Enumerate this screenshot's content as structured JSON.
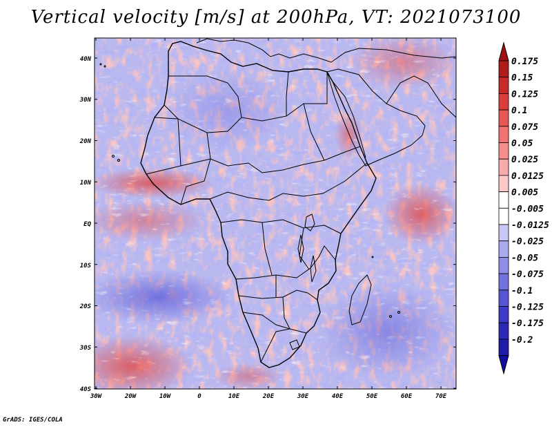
{
  "title": "Vertical velocity [m/s] at 200hPa, VT: 2021073100",
  "credit": "GrADS: IGES/COLA",
  "map": {
    "region": "Africa",
    "lon_range": [
      -30,
      75
    ],
    "lat_range": [
      -40,
      45
    ],
    "lon_ticks": [
      "30W",
      "20W",
      "10W",
      "0",
      "10E",
      "20E",
      "30E",
      "40E",
      "50E",
      "60E",
      "70E"
    ],
    "lat_ticks": [
      "40N",
      "30N",
      "20N",
      "10N",
      "EQ",
      "10S",
      "20S",
      "30S",
      "40S"
    ]
  },
  "colorbar": {
    "labels": [
      "0.175",
      "0.15",
      "0.125",
      "0.1",
      "0.075",
      "0.05",
      "0.025",
      "0.0125",
      "0.005",
      "-0.005",
      "-0.0125",
      "-0.025",
      "-0.05",
      "-0.075",
      "-0.1",
      "-0.125",
      "-0.175",
      "-0.2"
    ],
    "colors": [
      "#b01c1c",
      "#c82a2a",
      "#dc3c3c",
      "#e85656",
      "#f07272",
      "#f68e8e",
      "#f9aaaa",
      "#fcc8c8",
      "#ffffff",
      "#ffffff",
      "#c8c8f4",
      "#aaaaee",
      "#8e8ee6",
      "#7272dc",
      "#5656d2",
      "#3c3cc6",
      "#2a2ab6",
      "#1c1ca6"
    ],
    "top_arrow_color": "#a01010",
    "bottom_arrow_color": "#1010a0"
  }
}
